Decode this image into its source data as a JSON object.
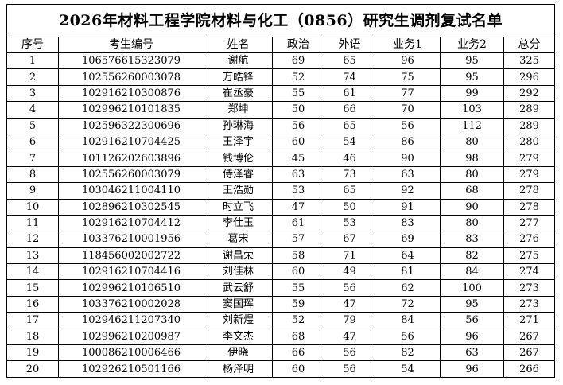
{
  "title": "2026年材料工程学院材料与化工（0856）研究生调剂复试名单",
  "headers": [
    "序号",
    "考生编号",
    "姓名",
    "政治",
    "外语",
    "业务1",
    "业务2",
    "总分"
  ],
  "rows": [
    [
      "1",
      "106576615323079",
      "谢航",
      "69",
      "65",
      "96",
      "95",
      "325"
    ],
    [
      "2",
      "102556260003078",
      "万皓锋",
      "52",
      "74",
      "75",
      "95",
      "296"
    ],
    [
      "3",
      "102916210300876",
      "崔丞豪",
      "55",
      "61",
      "77",
      "99",
      "292"
    ],
    [
      "4",
      "102996210101835",
      "郑坤",
      "50",
      "66",
      "70",
      "103",
      "289"
    ],
    [
      "5",
      "102596322300696",
      "孙琳海",
      "56",
      "65",
      "56",
      "112",
      "289"
    ],
    [
      "6",
      "102916210704425",
      "王泽宇",
      "60",
      "54",
      "86",
      "80",
      "280"
    ],
    [
      "7",
      "101126202603896",
      "钱博伦",
      "45",
      "46",
      "90",
      "98",
      "279"
    ],
    [
      "8",
      "102556260003079",
      "侍泽睿",
      "63",
      "73",
      "63",
      "80",
      "279"
    ],
    [
      "9",
      "103046211004110",
      "王浩勋",
      "53",
      "65",
      "92",
      "68",
      "278"
    ],
    [
      "10",
      "102896210302545",
      "时立飞",
      "47",
      "50",
      "91",
      "90",
      "278"
    ],
    [
      "11",
      "102916210704412",
      "李仕玉",
      "61",
      "53",
      "83",
      "80",
      "277"
    ],
    [
      "12",
      "103376210001956",
      "葛宋",
      "57",
      "67",
      "69",
      "83",
      "276"
    ],
    [
      "13",
      "118456002002722",
      "谢昌荣",
      "58",
      "71",
      "64",
      "82",
      "275"
    ],
    [
      "14",
      "102916210704416",
      "刘佳林",
      "60",
      "49",
      "81",
      "84",
      "274"
    ],
    [
      "15",
      "102996210106510",
      "武云舒",
      "55",
      "56",
      "62",
      "100",
      "273"
    ],
    [
      "16",
      "103376210002028",
      "窦国珲",
      "59",
      "47",
      "72",
      "95",
      "273"
    ],
    [
      "17",
      "102946211207340",
      "刘新煜",
      "52",
      "79",
      "84",
      "56",
      "271"
    ],
    [
      "18",
      "102996210200987",
      "李文杰",
      "68",
      "47",
      "56",
      "96",
      "267"
    ],
    [
      "19",
      "100086210006466",
      "伊晓",
      "66",
      "56",
      "82",
      "63",
      "267"
    ],
    [
      "20",
      "102926210501166",
      "杨泽明",
      "60",
      "56",
      "54",
      "96",
      "266"
    ]
  ]
}
